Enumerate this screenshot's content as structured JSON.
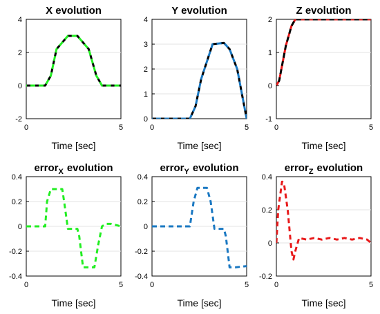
{
  "chart_data": [
    {
      "type": "line",
      "title": "X evolution",
      "xlabel": "Time [sec]",
      "xlim": [
        0,
        5
      ],
      "ylim": [
        -2,
        4
      ],
      "xticks": [
        "0",
        "5"
      ],
      "yticks": [
        "4",
        "2",
        "0",
        "-2"
      ],
      "grid": "horizontal",
      "series": [
        {
          "color": "#000000",
          "x": [
            0,
            1,
            1.3,
            1.6,
            2.2,
            2.7,
            3.3,
            3.7,
            4.0,
            5
          ],
          "y": [
            0,
            0,
            0.6,
            2.2,
            3.0,
            3.0,
            2.2,
            0.6,
            0,
            0
          ]
        },
        {
          "color": "#22ee22",
          "x": [
            0,
            1,
            1.3,
            1.6,
            2.2,
            2.7,
            3.3,
            3.7,
            4.0,
            5
          ],
          "y": [
            0,
            0,
            0.6,
            2.2,
            3.0,
            3.0,
            2.2,
            0.6,
            0,
            0
          ]
        }
      ]
    },
    {
      "type": "line",
      "title": "Y evolution",
      "xlabel": "Time [sec]",
      "xlim": [
        0,
        5
      ],
      "ylim": [
        0,
        4
      ],
      "xticks": [
        "0",
        "5"
      ],
      "yticks": [
        "4",
        "3",
        "2",
        "1",
        "0"
      ],
      "grid": "horizontal",
      "series": [
        {
          "color": "#000000",
          "x": [
            0,
            2.0,
            2.3,
            2.6,
            3.2,
            3.8,
            4.1,
            4.5,
            4.8,
            5
          ],
          "y": [
            0,
            0,
            0.5,
            1.6,
            3.0,
            3.05,
            2.8,
            2.0,
            0.8,
            0
          ]
        },
        {
          "color": "#1a78c2",
          "x": [
            0,
            2.0,
            2.3,
            2.6,
            3.2,
            3.8,
            4.1,
            4.5,
            4.8,
            5
          ],
          "y": [
            0,
            0,
            0.5,
            1.6,
            3.0,
            3.05,
            2.8,
            2.0,
            0.8,
            0
          ]
        }
      ]
    },
    {
      "type": "line",
      "title": "Z evolution",
      "xlabel": "Time [sec]",
      "xlim": [
        0,
        5
      ],
      "ylim": [
        -1,
        2
      ],
      "xticks": [
        "0",
        "5"
      ],
      "yticks": [
        "2",
        "1",
        "0",
        "-1"
      ],
      "grid": "horizontal",
      "series": [
        {
          "color": "#e8191a",
          "x": [
            0,
            0.15,
            0.3,
            0.5,
            0.8,
            1.0,
            1.2,
            5
          ],
          "y": [
            0,
            0.15,
            0.6,
            1.2,
            1.8,
            2.0,
            2.0,
            2.0
          ]
        },
        {
          "color": "#000000",
          "x": [
            0,
            0.15,
            0.3,
            0.5,
            0.8,
            1.0,
            1.2,
            5
          ],
          "y": [
            0,
            0.15,
            0.6,
            1.2,
            1.8,
            2.0,
            2.0,
            2.0
          ]
        }
      ]
    },
    {
      "type": "line",
      "title": "error",
      "title_sub": "X",
      "title_suffix": "evolution",
      "xlabel": "Time [sec]",
      "xlim": [
        0,
        5
      ],
      "ylim": [
        -0.4,
        0.4
      ],
      "xticks": [
        "0",
        "5"
      ],
      "yticks": [
        "0.4",
        "0.2",
        "0",
        "-0.2",
        "-0.4"
      ],
      "grid": "horizontal",
      "series": [
        {
          "color": "#22ee22",
          "x": [
            0,
            1.0,
            1.1,
            1.3,
            1.9,
            2.0,
            2.2,
            2.7,
            2.8,
            3.0,
            3.3,
            3.6,
            3.8,
            4.0,
            4.2,
            4.5,
            5
          ],
          "y": [
            0,
            0,
            0.2,
            0.3,
            0.3,
            0.2,
            -0.02,
            -0.02,
            -0.08,
            -0.33,
            -0.33,
            -0.33,
            -0.15,
            0.0,
            0.02,
            0.02,
            0
          ]
        }
      ]
    },
    {
      "type": "line",
      "title": "error",
      "title_sub": "Y",
      "title_suffix": "evolution",
      "xlabel": "Time [sec]",
      "xlim": [
        0,
        5
      ],
      "ylim": [
        -0.4,
        0.4
      ],
      "xticks": [
        "0",
        "5"
      ],
      "yticks": [
        "0.4",
        "0.2",
        "0",
        "-0.2",
        "-0.4"
      ],
      "grid": "horizontal",
      "series": [
        {
          "color": "#1a78c2",
          "x": [
            0,
            2.0,
            2.2,
            2.4,
            2.9,
            3.1,
            3.3,
            3.8,
            3.9,
            4.1,
            4.4,
            5
          ],
          "y": [
            0,
            0,
            0.2,
            0.31,
            0.31,
            0.2,
            -0.02,
            -0.02,
            -0.08,
            -0.33,
            -0.33,
            -0.32
          ]
        }
      ]
    },
    {
      "type": "line",
      "title": "error",
      "title_sub": "Z",
      "title_suffix": "evolution",
      "xlabel": "Time [sec]",
      "xlim": [
        0,
        5
      ],
      "ylim": [
        -0.2,
        0.4
      ],
      "xticks": [
        "0",
        "5"
      ],
      "yticks": [
        "0.4",
        "0.2",
        "0",
        "-0.2"
      ],
      "grid": "horizontal",
      "series": [
        {
          "color": "#e8191a",
          "x": [
            0,
            0.1,
            0.3,
            0.4,
            0.6,
            0.8,
            0.9,
            1.0,
            1.2,
            1.6,
            2.0,
            2.4,
            2.8,
            3.2,
            3.6,
            4.0,
            4.4,
            4.8,
            5
          ],
          "y": [
            0,
            0.2,
            0.37,
            0.36,
            0.2,
            -0.05,
            -0.1,
            -0.05,
            0.03,
            0.02,
            0.03,
            0.02,
            0.03,
            0.02,
            0.03,
            0.02,
            0.03,
            0.02,
            0.0
          ]
        }
      ]
    }
  ]
}
